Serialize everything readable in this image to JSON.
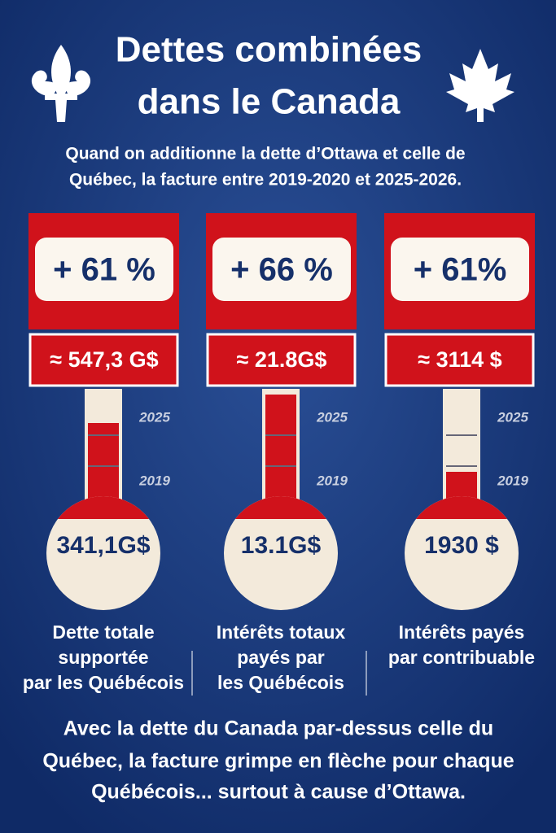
{
  "header": {
    "title": [
      "Dettes combinées",
      "dans le Canada"
    ],
    "subtitle": [
      "Quand on additionne la dette d’Ottawa et celle de",
      "Québec, la facture entre 2019-2020 et 2025-2026."
    ]
  },
  "cards": [
    {
      "change": "+ 61 %",
      "amount": "≈ 547,3 G$",
      "year_top": "2025",
      "year_bottom": "2019",
      "base": "341,1G$",
      "caption": [
        "Dette totale",
        "supportée",
        "par les Québécois"
      ]
    },
    {
      "change": "+ 66 %",
      "amount": "≈ 21.8G$",
      "year_top": "2025",
      "year_bottom": "2019",
      "base": "13.1G$",
      "caption": [
        "Intérêts totaux",
        "payés par",
        "les Québécois"
      ]
    },
    {
      "change": "+ 61%",
      "amount": "≈ 3114 $",
      "year_top": "2025",
      "year_bottom": "2019",
      "base": "1930 $",
      "caption": [
        "Intérêts payés",
        "par contribuable"
      ]
    }
  ],
  "footer": [
    "Avec la dette du Canada par-dessus celle du",
    "Québec, la facture grimpe en flèche pour chaque",
    "Québécois... surtout à cause d’Ottawa."
  ]
}
